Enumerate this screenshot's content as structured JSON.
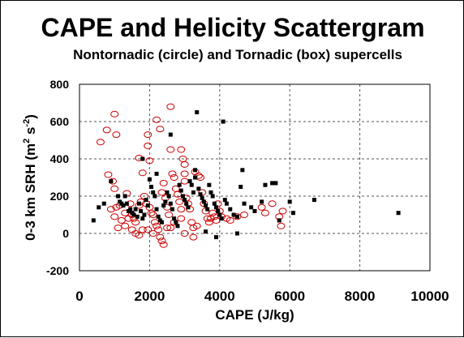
{
  "chart_data": {
    "type": "scatter",
    "title": "CAPE and Helicity Scattergram",
    "subtitle": "Nontornadic (circle) and Tornadic (box) supercells",
    "xlabel": "CAPE (J/kg)",
    "ylabel_prefix": "0-3 km SRH (m",
    "ylabel_sup1": "2",
    "ylabel_mid": " s",
    "ylabel_sup2": "-2",
    "ylabel_suffix": ")",
    "xlim": [
      0,
      10000
    ],
    "ylim": [
      -200,
      800
    ],
    "x_ticks": [
      "0",
      "2000",
      "4000",
      "6000",
      "8000",
      "10000"
    ],
    "y_ticks": [
      "800",
      "600",
      "400",
      "200",
      "0",
      "-200"
    ],
    "x_tick_values": [
      0,
      2000,
      4000,
      6000,
      8000,
      10000
    ],
    "y_tick_values": [
      800,
      600,
      400,
      200,
      0,
      -200
    ],
    "grid": {
      "vertical": "dashed",
      "horizontal": "dashed"
    },
    "series": [
      {
        "marker": "circle",
        "color": "#cc0000",
        "points": [
          [
            600,
            490
          ],
          [
            780,
            555
          ],
          [
            1000,
            640
          ],
          [
            1050,
            530
          ],
          [
            820,
            315
          ],
          [
            950,
            280
          ],
          [
            1000,
            240
          ],
          [
            1050,
            140
          ],
          [
            1000,
            90
          ],
          [
            1200,
            70
          ],
          [
            1300,
            110
          ],
          [
            1350,
            215
          ],
          [
            1450,
            160
          ],
          [
            1500,
            100
          ],
          [
            1550,
            80
          ],
          [
            1600,
            60
          ],
          [
            1700,
            150
          ],
          [
            1750,
            170
          ],
          [
            1700,
            405
          ],
          [
            1800,
            325
          ],
          [
            1850,
            200
          ],
          [
            1900,
            160
          ],
          [
            1950,
            530
          ],
          [
            1950,
            470
          ],
          [
            2000,
            390
          ],
          [
            2000,
            140
          ],
          [
            2050,
            110
          ],
          [
            2100,
            100
          ],
          [
            2150,
            60
          ],
          [
            2200,
            40
          ],
          [
            2250,
            20
          ],
          [
            2300,
            -20
          ],
          [
            2350,
            -40
          ],
          [
            2400,
            -60
          ],
          [
            1950,
            20
          ],
          [
            2100,
            0
          ],
          [
            2200,
            610
          ],
          [
            2300,
            560
          ],
          [
            2400,
            270
          ],
          [
            2450,
            190
          ],
          [
            2500,
            140
          ],
          [
            2550,
            100
          ],
          [
            2600,
            680
          ],
          [
            2600,
            450
          ],
          [
            2650,
            320
          ],
          [
            2700,
            300
          ],
          [
            2750,
            240
          ],
          [
            2800,
            210
          ],
          [
            2850,
            170
          ],
          [
            2900,
            130
          ],
          [
            2900,
            450
          ],
          [
            2950,
            400
          ],
          [
            3000,
            370
          ],
          [
            3000,
            320
          ],
          [
            3000,
            280
          ],
          [
            3050,
            190
          ],
          [
            3100,
            160
          ],
          [
            3150,
            130
          ],
          [
            3200,
            60
          ],
          [
            3250,
            30
          ],
          [
            3250,
            -20
          ],
          [
            3300,
            330
          ],
          [
            3400,
            310
          ],
          [
            3450,
            300
          ],
          [
            3500,
            220
          ],
          [
            3550,
            160
          ],
          [
            3600,
            120
          ],
          [
            3650,
            80
          ],
          [
            3700,
            60
          ],
          [
            3750,
            80
          ],
          [
            3800,
            110
          ],
          [
            3850,
            90
          ],
          [
            3900,
            70
          ],
          [
            3950,
            160
          ],
          [
            4000,
            120
          ],
          [
            4050,
            90
          ],
          [
            4200,
            80
          ],
          [
            4300,
            70
          ],
          [
            4500,
            90
          ],
          [
            4700,
            100
          ],
          [
            5200,
            140
          ],
          [
            5300,
            110
          ],
          [
            5500,
            160
          ],
          [
            5700,
            90
          ],
          [
            5750,
            40
          ],
          [
            5800,
            120
          ],
          [
            1100,
            30
          ],
          [
            1300,
            40
          ],
          [
            1400,
            80
          ],
          [
            1500,
            20
          ],
          [
            1600,
            0
          ],
          [
            1700,
            -10
          ],
          [
            1800,
            20
          ],
          [
            2500,
            30
          ],
          [
            2600,
            30
          ],
          [
            2700,
            60
          ],
          [
            3000,
            0
          ],
          [
            3350,
            40
          ],
          [
            900,
            130
          ],
          [
            1150,
            150
          ],
          [
            2350,
            220
          ],
          [
            2900,
            80
          ]
        ]
      },
      {
        "marker": "box",
        "color": "#000000",
        "points": [
          [
            400,
            70
          ],
          [
            550,
            140
          ],
          [
            700,
            160
          ],
          [
            900,
            280
          ],
          [
            1100,
            200
          ],
          [
            1150,
            170
          ],
          [
            1200,
            160
          ],
          [
            1250,
            150
          ],
          [
            1300,
            200
          ],
          [
            1350,
            160
          ],
          [
            1400,
            120
          ],
          [
            1450,
            130
          ],
          [
            1500,
            110
          ],
          [
            1550,
            100
          ],
          [
            1600,
            130
          ],
          [
            1650,
            90
          ],
          [
            1700,
            160
          ],
          [
            1750,
            120
          ],
          [
            1800,
            80
          ],
          [
            1850,
            100
          ],
          [
            1900,
            180
          ],
          [
            1950,
            150
          ],
          [
            2000,
            290
          ],
          [
            2050,
            250
          ],
          [
            2100,
            220
          ],
          [
            2150,
            200
          ],
          [
            2200,
            130
          ],
          [
            2250,
            90
          ],
          [
            2300,
            70
          ],
          [
            2350,
            60
          ],
          [
            2400,
            150
          ],
          [
            2450,
            170
          ],
          [
            2500,
            220
          ],
          [
            2550,
            200
          ],
          [
            2600,
            160
          ],
          [
            2650,
            130
          ],
          [
            2700,
            80
          ],
          [
            2750,
            60
          ],
          [
            2800,
            40
          ],
          [
            2850,
            260
          ],
          [
            2900,
            230
          ],
          [
            2950,
            200
          ],
          [
            3000,
            180
          ],
          [
            3050,
            160
          ],
          [
            3100,
            140
          ],
          [
            3150,
            280
          ],
          [
            3200,
            260
          ],
          [
            3250,
            220
          ],
          [
            3300,
            340
          ],
          [
            3350,
            650
          ],
          [
            3400,
            240
          ],
          [
            3450,
            210
          ],
          [
            3500,
            190
          ],
          [
            3550,
            170
          ],
          [
            3600,
            150
          ],
          [
            3650,
            130
          ],
          [
            3700,
            260
          ],
          [
            3750,
            220
          ],
          [
            3800,
            200
          ],
          [
            3850,
            160
          ],
          [
            3900,
            140
          ],
          [
            3950,
            120
          ],
          [
            4000,
            100
          ],
          [
            4050,
            80
          ],
          [
            4100,
            600
          ],
          [
            4150,
            180
          ],
          [
            4200,
            160
          ],
          [
            4300,
            130
          ],
          [
            4400,
            100
          ],
          [
            4500,
            90
          ],
          [
            4600,
            250
          ],
          [
            4650,
            340
          ],
          [
            4700,
            160
          ],
          [
            4900,
            140
          ],
          [
            5000,
            120
          ],
          [
            5200,
            170
          ],
          [
            5300,
            260
          ],
          [
            5500,
            270
          ],
          [
            5600,
            270
          ],
          [
            5700,
            70
          ],
          [
            6000,
            170
          ],
          [
            6100,
            110
          ],
          [
            6700,
            180
          ],
          [
            9100,
            110
          ],
          [
            3900,
            -20
          ],
          [
            4500,
            0
          ],
          [
            3600,
            10
          ],
          [
            2600,
            530
          ],
          [
            1800,
            400
          ],
          [
            2200,
            320
          ],
          [
            3300,
            300
          ]
        ]
      }
    ]
  }
}
